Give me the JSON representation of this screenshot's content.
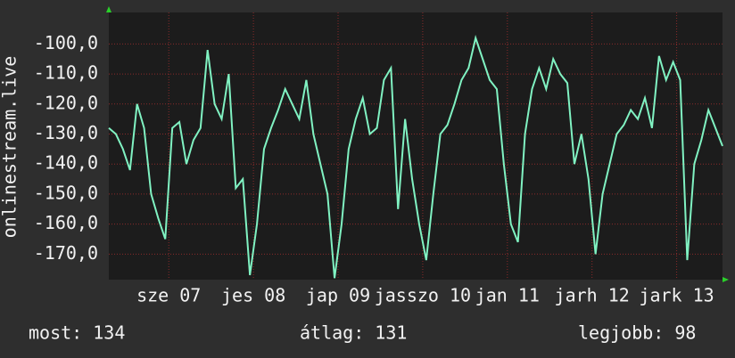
{
  "chart_data": {
    "type": "line",
    "y_label": "onlinestream.live",
    "x": [
      0,
      2,
      4,
      6,
      8,
      10,
      12,
      14,
      16,
      18,
      20,
      22,
      24,
      26,
      28,
      30,
      32,
      34,
      36,
      38,
      40,
      42,
      44,
      46,
      48,
      50,
      52,
      54,
      56,
      58,
      60,
      62,
      64,
      66,
      68,
      70,
      72,
      74,
      76,
      78,
      80,
      82,
      84,
      86,
      88,
      90,
      92,
      94,
      96,
      98,
      100,
      102,
      104,
      106,
      108,
      110,
      112,
      114,
      116,
      118,
      120,
      122,
      124,
      126,
      128,
      130,
      132,
      134,
      136,
      138,
      140,
      142,
      144,
      146,
      148,
      150,
      152,
      154,
      156,
      158,
      160,
      162,
      164,
      166,
      168,
      170,
      172,
      174
    ],
    "series": [
      {
        "color": "#80f2c2",
        "values": [
          -128,
          -130,
          -135,
          -142,
          -120,
          -128,
          -150,
          -158,
          -165,
          -128,
          -126,
          -140,
          -132,
          -128,
          -102,
          -120,
          -125,
          -110,
          -148,
          -145,
          -177,
          -160,
          -135,
          -128,
          -122,
          -115,
          -120,
          -125,
          -112,
          -130,
          -140,
          -150,
          -178,
          -160,
          -135,
          -125,
          -118,
          -130,
          -128,
          -112,
          -108,
          -155,
          -125,
          -145,
          -160,
          -172,
          -150,
          -130,
          -127,
          -120,
          -112,
          -108,
          -98,
          -105,
          -112,
          -115,
          -140,
          -160,
          -166,
          -130,
          -115,
          -108,
          -115,
          -105,
          -110,
          -113,
          -140,
          -130,
          -145,
          -170,
          -150,
          -140,
          -130,
          -127,
          -122,
          -125,
          -118,
          -128,
          -104,
          -112,
          -106,
          -112,
          -172,
          -140,
          -132,
          -122,
          -128,
          -134
        ]
      }
    ],
    "xlim": [
      0,
      174
    ],
    "xticks": [
      {
        "value": 17,
        "label": "sze 07"
      },
      {
        "value": 41,
        "label": "jes 08"
      },
      {
        "value": 65,
        "label": "jap 09"
      },
      {
        "value": 89,
        "label": "jasszo 10"
      },
      {
        "value": 113,
        "label": "jan 11"
      },
      {
        "value": 137,
        "label": "jarh 12"
      },
      {
        "value": 161,
        "label": "jark 13"
      }
    ],
    "ylim": [
      -178.5,
      -89.5
    ],
    "yticks": [
      {
        "value": -100,
        "label": "-100,0"
      },
      {
        "value": -110,
        "label": "-110,0"
      },
      {
        "value": -120,
        "label": "-120,0"
      },
      {
        "value": -130,
        "label": "-130,0"
      },
      {
        "value": -140,
        "label": "-140,0"
      },
      {
        "value": -150,
        "label": "-150,0"
      },
      {
        "value": -160,
        "label": "-160,0"
      },
      {
        "value": -170,
        "label": "-170,0"
      }
    ],
    "grid": true,
    "stats": [
      "most: 134",
      "átlag: 131",
      "legjobb: 98"
    ]
  }
}
